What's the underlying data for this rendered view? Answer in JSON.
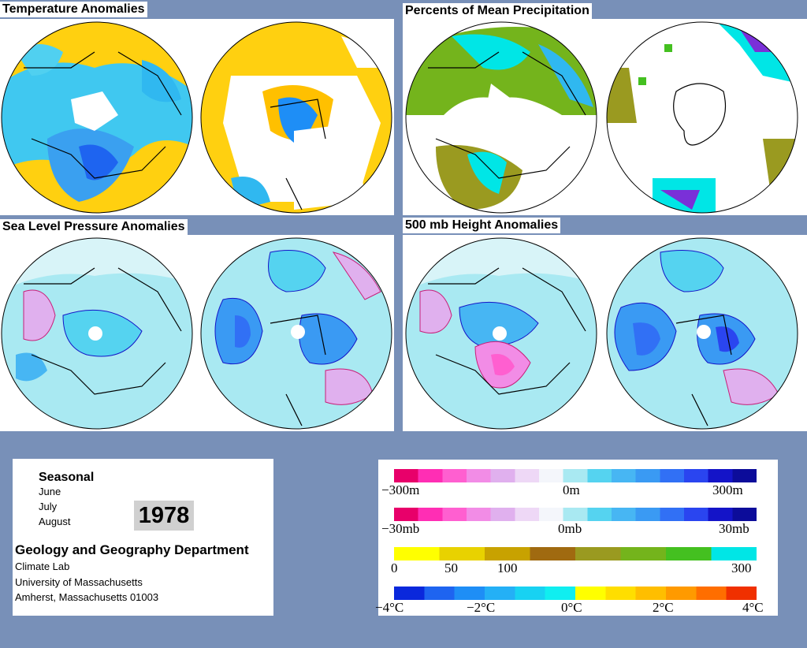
{
  "panels": {
    "temp": {
      "title": "Temperature Anomalies"
    },
    "precip": {
      "title": "Percents of Mean Precipitation"
    },
    "slp": {
      "title": "Sea Level Pressure Anomalies"
    },
    "h500": {
      "title": "500 mb Height Anomalies"
    }
  },
  "info": {
    "season": "Seasonal",
    "months": [
      "June",
      "July",
      "August"
    ],
    "year": "1978",
    "department": "Geology and Geography Department",
    "address": [
      "Climate Lab",
      "University of Massachusetts",
      "Amherst, Massachusetts 01003"
    ]
  },
  "legends": {
    "height": {
      "labels": [
        "−300m",
        "0m",
        "300m"
      ],
      "colors": [
        "#e8006a",
        "#ff2eb4",
        "#ff5fd0",
        "#f28ce6",
        "#e0b0ee",
        "#eed8f6",
        "#f4f6fb",
        "#a9e9f2",
        "#55d3f0",
        "#47b6f3",
        "#3a9af3",
        "#3170f5",
        "#2a45f0",
        "#1414c8",
        "#0c0c9a"
      ]
    },
    "pressure": {
      "labels": [
        "−30mb",
        "0mb",
        "30mb"
      ],
      "colors": [
        "#e8006a",
        "#ff2eb4",
        "#ff5fd0",
        "#f28ce6",
        "#e0b0ee",
        "#eed8f6",
        "#f4f6fb",
        "#a9e9f2",
        "#55d3f0",
        "#47b6f3",
        "#3a9af3",
        "#3170f5",
        "#2a45f0",
        "#1414c8",
        "#0c0c9a"
      ]
    },
    "precip": {
      "labels": [
        "0",
        "50",
        "100",
        "300"
      ],
      "colors": [
        "#ffff00",
        "#e8d200",
        "#c8a200",
        "#a06a10",
        "#9a9a20",
        "#74b41c",
        "#44c020",
        "#00e6e6"
      ]
    },
    "temp": {
      "labels": [
        "−4°C",
        "−2°C",
        "0°C",
        "2°C",
        "4°C"
      ],
      "colors": [
        "#0a28dc",
        "#1e64f0",
        "#1e8ef6",
        "#24b0f6",
        "#18d2f2",
        "#10eef0",
        "#ffff00",
        "#ffde00",
        "#ffbe00",
        "#ff9a00",
        "#ff6e00",
        "#f03000"
      ]
    }
  }
}
